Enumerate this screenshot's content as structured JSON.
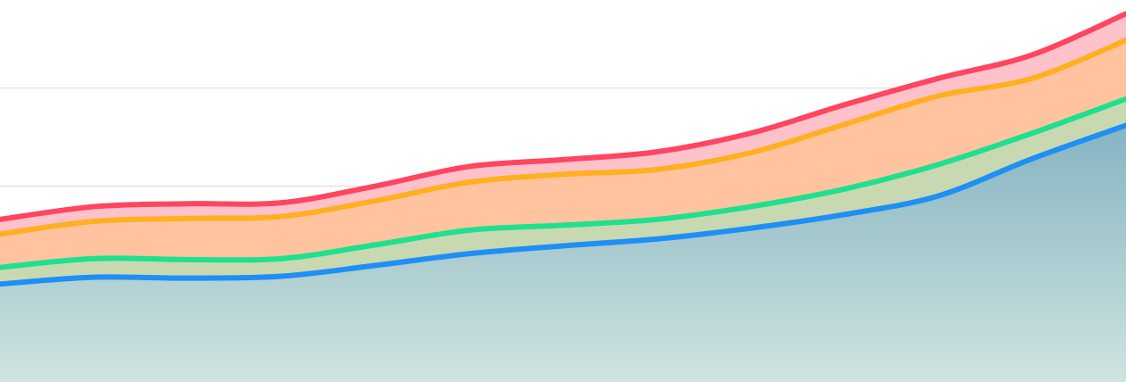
{
  "chart_data": {
    "type": "stacked_area",
    "x": [
      0,
      1,
      2,
      3,
      4,
      5,
      6,
      7,
      8,
      9,
      10,
      11,
      12
    ],
    "xlim": [
      0,
      12
    ],
    "ylim": [
      0,
      3.9
    ],
    "yticks": [
      1,
      2,
      3
    ],
    "grid": true,
    "series": [
      {
        "color": "#1e8ff5",
        "values": [
          1.0,
          1.07,
          1.06,
          1.08,
          1.19,
          1.31,
          1.39,
          1.46,
          1.57,
          1.71,
          1.9,
          2.28,
          2.62
        ]
      },
      {
        "color": "#1ee08f",
        "values": [
          0.17,
          0.19,
          0.19,
          0.18,
          0.21,
          0.24,
          0.21,
          0.2,
          0.22,
          0.26,
          0.32,
          0.26,
          0.27
        ]
      },
      {
        "color": "#ffb020",
        "values": [
          0.34,
          0.38,
          0.42,
          0.43,
          0.45,
          0.49,
          0.52,
          0.51,
          0.55,
          0.66,
          0.7,
          0.56,
          0.6
        ]
      },
      {
        "color": "#ff4560",
        "values": [
          0.15,
          0.15,
          0.15,
          0.14,
          0.15,
          0.16,
          0.15,
          0.18,
          0.2,
          0.2,
          0.18,
          0.24,
          0.27
        ]
      }
    ]
  }
}
